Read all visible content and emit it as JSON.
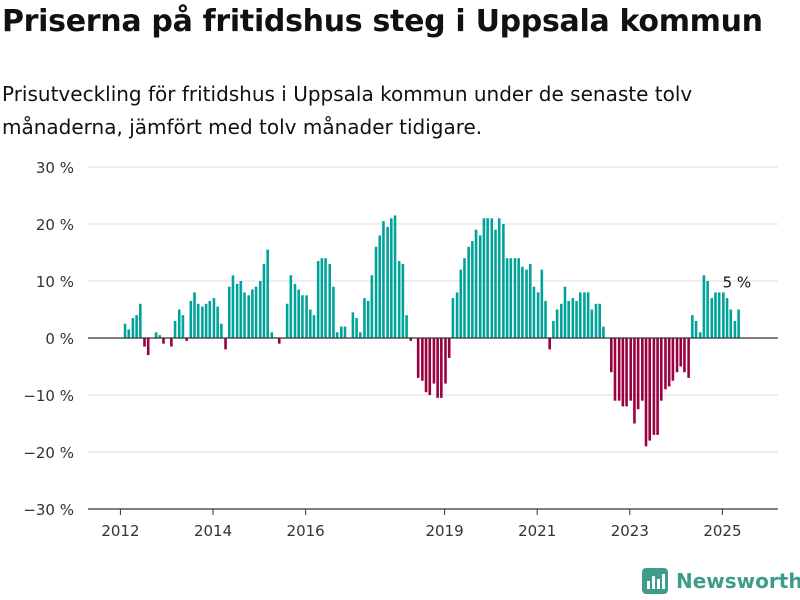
{
  "header": {
    "title": "Priserna på fritidshus steg i Uppsala kommun",
    "subtitle": "Prisutveckling för fritidshus i Uppsala kommun under de senaste tolv månaderna, jämfört med tolv månader tidigare."
  },
  "brand": {
    "name": "Newsworthy",
    "color": "#3f9b8c"
  },
  "colors": {
    "positive": "#00a39a",
    "negative": "#9b0040",
    "grid": "#dddddd",
    "zero_line": "#333333",
    "text": "#333333"
  },
  "chart_data": {
    "type": "bar",
    "grid": "horizontal",
    "ylim": [
      -30,
      30
    ],
    "y_ticks": [
      -30,
      -20,
      -10,
      0,
      10,
      20,
      30
    ],
    "y_tick_labels": [
      "−30 %",
      "−20 %",
      "−10 %",
      "0 %",
      "10 %",
      "20 %",
      "30 %"
    ],
    "x_ticks": [
      2012,
      2014,
      2016,
      2019,
      2021,
      2023,
      2025
    ],
    "x_tick_labels": [
      "2012",
      "2014",
      "2016",
      "2019",
      "2021",
      "2023",
      "2025"
    ],
    "xlim": [
      2011.3,
      2026.2
    ],
    "annotation": {
      "text": "5 %",
      "value": 5
    },
    "series": [
      {
        "values": [
          {
            "x": 2012.1,
            "y": 2.5
          },
          {
            "x": 2012.18,
            "y": 1.5
          },
          {
            "x": 2012.27,
            "y": 3.5
          },
          {
            "x": 2012.35,
            "y": 4.0
          },
          {
            "x": 2012.43,
            "y": 6.0
          },
          {
            "x": 2012.52,
            "y": -1.5
          },
          {
            "x": 2012.6,
            "y": -3.0
          },
          {
            "x": 2012.77,
            "y": 1.0
          },
          {
            "x": 2012.85,
            "y": 0.5
          },
          {
            "x": 2012.93,
            "y": -1.0
          },
          {
            "x": 2013.1,
            "y": -1.5
          },
          {
            "x": 2013.18,
            "y": 3.0
          },
          {
            "x": 2013.27,
            "y": 5.0
          },
          {
            "x": 2013.35,
            "y": 4.0
          },
          {
            "x": 2013.43,
            "y": -0.5
          },
          {
            "x": 2013.52,
            "y": 6.5
          },
          {
            "x": 2013.6,
            "y": 8.0
          },
          {
            "x": 2013.68,
            "y": 6.0
          },
          {
            "x": 2013.77,
            "y": 5.5
          },
          {
            "x": 2013.85,
            "y": 6.0
          },
          {
            "x": 2013.93,
            "y": 6.5
          },
          {
            "x": 2014.02,
            "y": 7.0
          },
          {
            "x": 2014.1,
            "y": 5.5
          },
          {
            "x": 2014.18,
            "y": 2.5
          },
          {
            "x": 2014.27,
            "y": -2.0
          },
          {
            "x": 2014.35,
            "y": 9.0
          },
          {
            "x": 2014.43,
            "y": 11.0
          },
          {
            "x": 2014.52,
            "y": 9.5
          },
          {
            "x": 2014.6,
            "y": 10.0
          },
          {
            "x": 2014.68,
            "y": 8.0
          },
          {
            "x": 2014.77,
            "y": 7.5
          },
          {
            "x": 2014.85,
            "y": 8.5
          },
          {
            "x": 2014.93,
            "y": 9.0
          },
          {
            "x": 2015.02,
            "y": 10.0
          },
          {
            "x": 2015.1,
            "y": 13.0
          },
          {
            "x": 2015.18,
            "y": 15.5
          },
          {
            "x": 2015.27,
            "y": 1.0
          },
          {
            "x": 2015.43,
            "y": -1.0
          },
          {
            "x": 2015.6,
            "y": 6.0
          },
          {
            "x": 2015.68,
            "y": 11.0
          },
          {
            "x": 2015.77,
            "y": 9.5
          },
          {
            "x": 2015.85,
            "y": 8.5
          },
          {
            "x": 2015.93,
            "y": 7.5
          },
          {
            "x": 2016.02,
            "y": 7.5
          },
          {
            "x": 2016.1,
            "y": 5.0
          },
          {
            "x": 2016.18,
            "y": 4.0
          },
          {
            "x": 2016.27,
            "y": 13.5
          },
          {
            "x": 2016.35,
            "y": 14.0
          },
          {
            "x": 2016.43,
            "y": 14.0
          },
          {
            "x": 2016.52,
            "y": 13.0
          },
          {
            "x": 2016.6,
            "y": 9.0
          },
          {
            "x": 2016.68,
            "y": 1.0
          },
          {
            "x": 2016.77,
            "y": 2.0
          },
          {
            "x": 2016.85,
            "y": 2.0
          },
          {
            "x": 2017.02,
            "y": 4.5
          },
          {
            "x": 2017.1,
            "y": 3.5
          },
          {
            "x": 2017.18,
            "y": 1.0
          },
          {
            "x": 2017.27,
            "y": 7.0
          },
          {
            "x": 2017.35,
            "y": 6.5
          },
          {
            "x": 2017.43,
            "y": 11.0
          },
          {
            "x": 2017.52,
            "y": 16.0
          },
          {
            "x": 2017.6,
            "y": 18.0
          },
          {
            "x": 2017.68,
            "y": 20.5
          },
          {
            "x": 2017.77,
            "y": 19.5
          },
          {
            "x": 2017.85,
            "y": 21.0
          },
          {
            "x": 2017.93,
            "y": 21.5
          },
          {
            "x": 2018.02,
            "y": 13.5
          },
          {
            "x": 2018.1,
            "y": 13.0
          },
          {
            "x": 2018.18,
            "y": 4.0
          },
          {
            "x": 2018.27,
            "y": -0.5
          },
          {
            "x": 2018.43,
            "y": -7.0
          },
          {
            "x": 2018.52,
            "y": -7.5
          },
          {
            "x": 2018.6,
            "y": -9.5
          },
          {
            "x": 2018.68,
            "y": -10.0
          },
          {
            "x": 2018.77,
            "y": -8.0
          },
          {
            "x": 2018.85,
            "y": -10.5
          },
          {
            "x": 2018.93,
            "y": -10.5
          },
          {
            "x": 2019.02,
            "y": -8.0
          },
          {
            "x": 2019.1,
            "y": -3.5
          },
          {
            "x": 2019.18,
            "y": 7.0
          },
          {
            "x": 2019.27,
            "y": 8.0
          },
          {
            "x": 2019.35,
            "y": 12.0
          },
          {
            "x": 2019.43,
            "y": 14.0
          },
          {
            "x": 2019.52,
            "y": 16.0
          },
          {
            "x": 2019.6,
            "y": 17.0
          },
          {
            "x": 2019.68,
            "y": 19.0
          },
          {
            "x": 2019.77,
            "y": 18.0
          },
          {
            "x": 2019.85,
            "y": 21.0
          },
          {
            "x": 2019.93,
            "y": 21.0
          },
          {
            "x": 2020.02,
            "y": 21.0
          },
          {
            "x": 2020.1,
            "y": 19.0
          },
          {
            "x": 2020.18,
            "y": 21.0
          },
          {
            "x": 2020.27,
            "y": 20.0
          },
          {
            "x": 2020.35,
            "y": 14.0
          },
          {
            "x": 2020.43,
            "y": 14.0
          },
          {
            "x": 2020.52,
            "y": 14.0
          },
          {
            "x": 2020.6,
            "y": 14.0
          },
          {
            "x": 2020.68,
            "y": 12.5
          },
          {
            "x": 2020.77,
            "y": 12.0
          },
          {
            "x": 2020.85,
            "y": 13.0
          },
          {
            "x": 2020.93,
            "y": 9.0
          },
          {
            "x": 2021.02,
            "y": 8.0
          },
          {
            "x": 2021.1,
            "y": 12.0
          },
          {
            "x": 2021.18,
            "y": 6.5
          },
          {
            "x": 2021.27,
            "y": -2.0
          },
          {
            "x": 2021.35,
            "y": 3.0
          },
          {
            "x": 2021.43,
            "y": 5.0
          },
          {
            "x": 2021.52,
            "y": 6.0
          },
          {
            "x": 2021.6,
            "y": 9.0
          },
          {
            "x": 2021.68,
            "y": 6.5
          },
          {
            "x": 2021.77,
            "y": 7.0
          },
          {
            "x": 2021.85,
            "y": 6.5
          },
          {
            "x": 2021.93,
            "y": 8.0
          },
          {
            "x": 2022.02,
            "y": 8.0
          },
          {
            "x": 2022.1,
            "y": 8.0
          },
          {
            "x": 2022.18,
            "y": 5.0
          },
          {
            "x": 2022.27,
            "y": 6.0
          },
          {
            "x": 2022.35,
            "y": 6.0
          },
          {
            "x": 2022.43,
            "y": 2.0
          },
          {
            "x": 2022.6,
            "y": -6.0
          },
          {
            "x": 2022.68,
            "y": -11.0
          },
          {
            "x": 2022.77,
            "y": -11.0
          },
          {
            "x": 2022.85,
            "y": -12.0
          },
          {
            "x": 2022.93,
            "y": -12.0
          },
          {
            "x": 2023.02,
            "y": -11.0
          },
          {
            "x": 2023.1,
            "y": -15.0
          },
          {
            "x": 2023.18,
            "y": -12.5
          },
          {
            "x": 2023.27,
            "y": -11.0
          },
          {
            "x": 2023.35,
            "y": -19.0
          },
          {
            "x": 2023.43,
            "y": -18.0
          },
          {
            "x": 2023.52,
            "y": -17.0
          },
          {
            "x": 2023.6,
            "y": -17.0
          },
          {
            "x": 2023.68,
            "y": -11.0
          },
          {
            "x": 2023.77,
            "y": -9.0
          },
          {
            "x": 2023.85,
            "y": -8.5
          },
          {
            "x": 2023.93,
            "y": -7.5
          },
          {
            "x": 2024.02,
            "y": -6.0
          },
          {
            "x": 2024.1,
            "y": -5.0
          },
          {
            "x": 2024.18,
            "y": -6.0
          },
          {
            "x": 2024.27,
            "y": -7.0
          },
          {
            "x": 2024.35,
            "y": 4.0
          },
          {
            "x": 2024.43,
            "y": 3.0
          },
          {
            "x": 2024.52,
            "y": 1.0
          },
          {
            "x": 2024.6,
            "y": 11.0
          },
          {
            "x": 2024.68,
            "y": 10.0
          },
          {
            "x": 2024.77,
            "y": 7.0
          },
          {
            "x": 2024.85,
            "y": 8.0
          },
          {
            "x": 2024.93,
            "y": 8.0
          },
          {
            "x": 2025.02,
            "y": 8.0
          },
          {
            "x": 2025.1,
            "y": 7.0
          },
          {
            "x": 2025.18,
            "y": 5.0
          },
          {
            "x": 2025.27,
            "y": 3.0
          },
          {
            "x": 2025.35,
            "y": 5.0
          }
        ]
      }
    ]
  }
}
